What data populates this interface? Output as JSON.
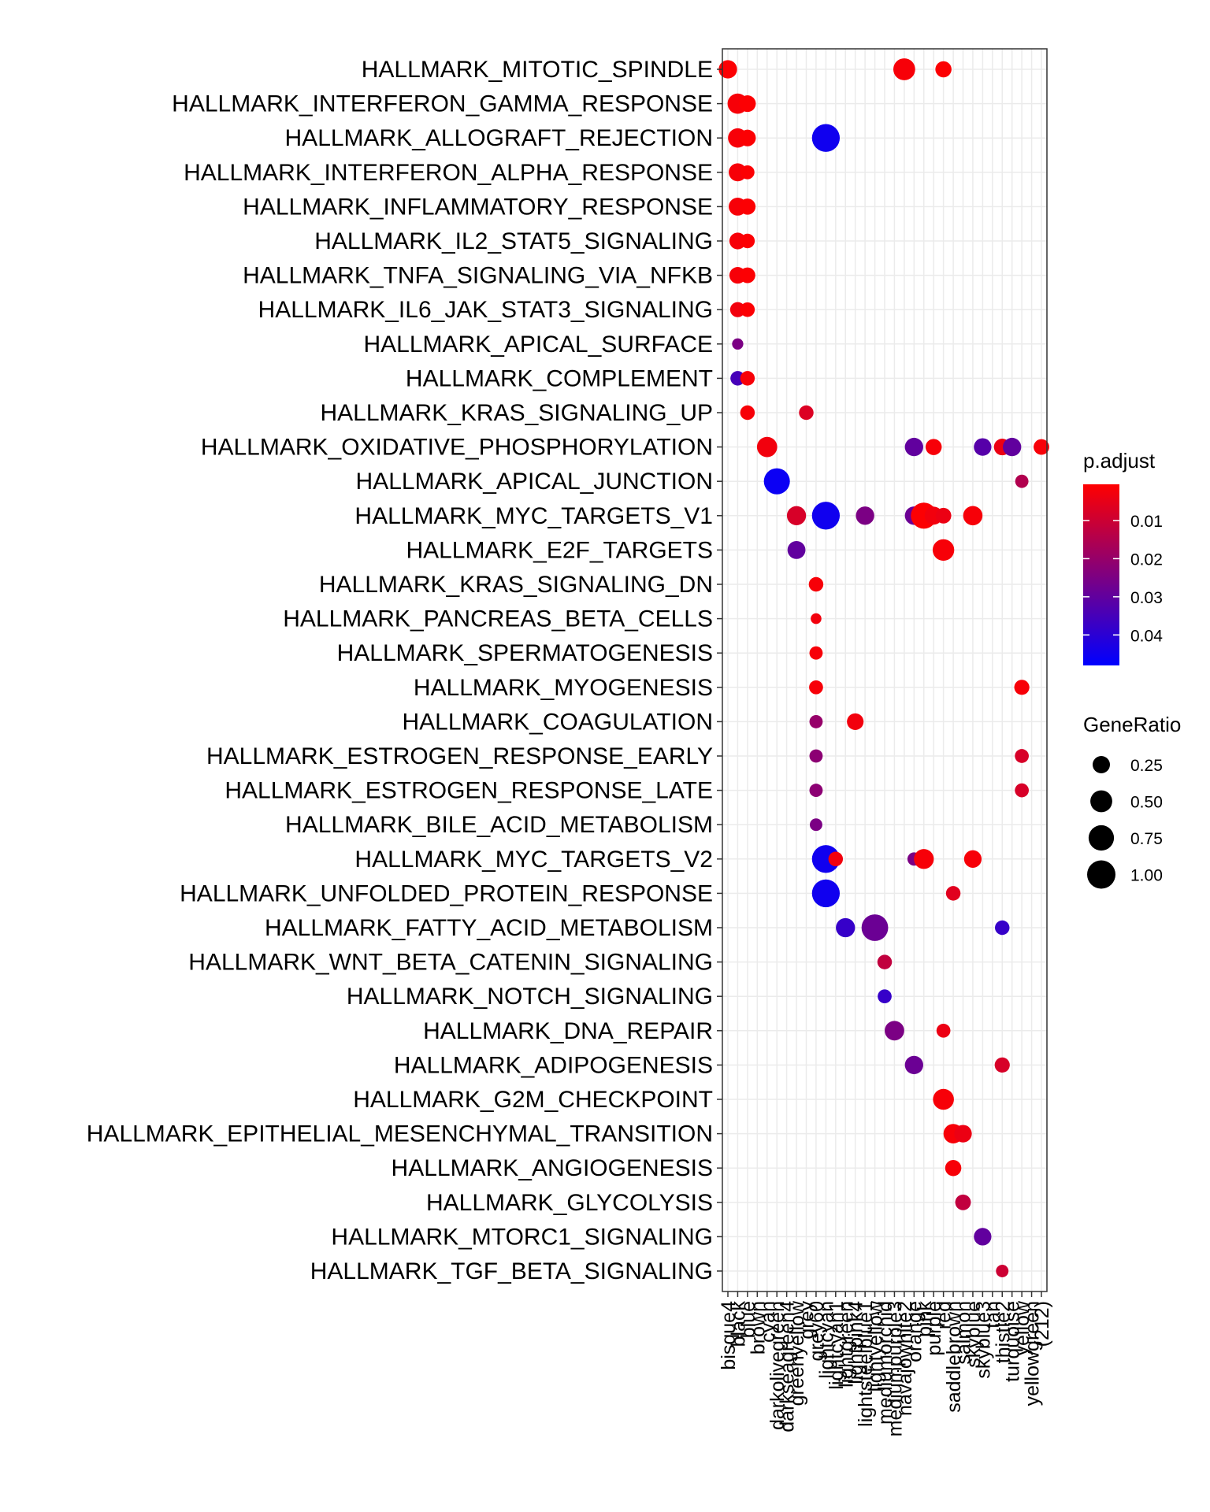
{
  "chart_data": {
    "type": "scatter",
    "title": "",
    "xlabel": "",
    "ylabel": "",
    "x_categories": [
      "bisque4",
      "black",
      "blue",
      "brown",
      "cyan",
      "darkolivegreen",
      "darkseagreen4",
      "greenyellow",
      "grey",
      "grey60",
      "lightcyan",
      "lightcyan1",
      "lightgreen",
      "lightpink4",
      "lightsteelblue1",
      "lightyellow",
      "mediumorchid",
      "mediumpurple3",
      "navajowhite2",
      "orange",
      "pink",
      "purple",
      "red",
      "saddlebrown",
      "salmon",
      "skyblue",
      "skyblue3",
      "tan",
      "thistle2",
      "turquoise",
      "yellow",
      "yellowgreen",
      "(212)"
    ],
    "y_categories": [
      "HALLMARK_MITOTIC_SPINDLE",
      "HALLMARK_INTERFERON_GAMMA_RESPONSE",
      "HALLMARK_ALLOGRAFT_REJECTION",
      "HALLMARK_INTERFERON_ALPHA_RESPONSE",
      "HALLMARK_INFLAMMATORY_RESPONSE",
      "HALLMARK_IL2_STAT5_SIGNALING",
      "HALLMARK_TNFA_SIGNALING_VIA_NFKB",
      "HALLMARK_IL6_JAK_STAT3_SIGNALING",
      "HALLMARK_APICAL_SURFACE",
      "HALLMARK_COMPLEMENT",
      "HALLMARK_KRAS_SIGNALING_UP",
      "HALLMARK_OXIDATIVE_PHOSPHORYLATION",
      "HALLMARK_APICAL_JUNCTION",
      "HALLMARK_MYC_TARGETS_V1",
      "HALLMARK_E2F_TARGETS",
      "HALLMARK_KRAS_SIGNALING_DN",
      "HALLMARK_PANCREAS_BETA_CELLS",
      "HALLMARK_SPERMATOGENESIS",
      "HALLMARK_MYOGENESIS",
      "HALLMARK_COAGULATION",
      "HALLMARK_ESTROGEN_RESPONSE_EARLY",
      "HALLMARK_ESTROGEN_RESPONSE_LATE",
      "HALLMARK_BILE_ACID_METABOLISM",
      "HALLMARK_MYC_TARGETS_V2",
      "HALLMARK_UNFOLDED_PROTEIN_RESPONSE",
      "HALLMARK_FATTY_ACID_METABOLISM",
      "HALLMARK_WNT_BETA_CATENIN_SIGNALING",
      "HALLMARK_NOTCH_SIGNALING",
      "HALLMARK_DNA_REPAIR",
      "HALLMARK_ADIPOGENESIS",
      "HALLMARK_G2M_CHECKPOINT",
      "HALLMARK_EPITHELIAL_MESENCHYMAL_TRANSITION",
      "HALLMARK_ANGIOGENESIS",
      "HALLMARK_GLYCOLYSIS",
      "HALLMARK_MTORC1_SIGNALING",
      "HALLMARK_TGF_BETA_SIGNALING"
    ],
    "points": [
      {
        "x": "bisque4",
        "y": "HALLMARK_MITOTIC_SPINDLE",
        "ratio": 0.3,
        "padj": 0.001
      },
      {
        "x": "navajowhite2",
        "y": "HALLMARK_MITOTIC_SPINDLE",
        "ratio": 0.5,
        "padj": 0.002
      },
      {
        "x": "red",
        "y": "HALLMARK_MITOTIC_SPINDLE",
        "ratio": 0.2,
        "padj": 0.001
      },
      {
        "x": "black",
        "y": "HALLMARK_INTERFERON_GAMMA_RESPONSE",
        "ratio": 0.4,
        "padj": 0.002
      },
      {
        "x": "blue",
        "y": "HALLMARK_INTERFERON_GAMMA_RESPONSE",
        "ratio": 0.22,
        "padj": 0.001
      },
      {
        "x": "black",
        "y": "HALLMARK_ALLOGRAFT_REJECTION",
        "ratio": 0.35,
        "padj": 0.002
      },
      {
        "x": "blue",
        "y": "HALLMARK_ALLOGRAFT_REJECTION",
        "ratio": 0.22,
        "padj": 0.001
      },
      {
        "x": "lightcyan",
        "y": "HALLMARK_ALLOGRAFT_REJECTION",
        "ratio": 0.95,
        "padj": 0.045
      },
      {
        "x": "black",
        "y": "HALLMARK_INTERFERON_ALPHA_RESPONSE",
        "ratio": 0.28,
        "padj": 0.002
      },
      {
        "x": "blue",
        "y": "HALLMARK_INTERFERON_ALPHA_RESPONSE",
        "ratio": 0.12,
        "padj": 0.001
      },
      {
        "x": "black",
        "y": "HALLMARK_INFLAMMATORY_RESPONSE",
        "ratio": 0.28,
        "padj": 0.002
      },
      {
        "x": "blue",
        "y": "HALLMARK_INFLAMMATORY_RESPONSE",
        "ratio": 0.2,
        "padj": 0.001
      },
      {
        "x": "black",
        "y": "HALLMARK_IL2_STAT5_SIGNALING",
        "ratio": 0.22,
        "padj": 0.002
      },
      {
        "x": "blue",
        "y": "HALLMARK_IL2_STAT5_SIGNALING",
        "ratio": 0.14,
        "padj": 0.001
      },
      {
        "x": "black",
        "y": "HALLMARK_TNFA_SIGNALING_VIA_NFKB",
        "ratio": 0.22,
        "padj": 0.002
      },
      {
        "x": "blue",
        "y": "HALLMARK_TNFA_SIGNALING_VIA_NFKB",
        "ratio": 0.18,
        "padj": 0.001
      },
      {
        "x": "black",
        "y": "HALLMARK_IL6_JAK_STAT3_SIGNALING",
        "ratio": 0.16,
        "padj": 0.003
      },
      {
        "x": "blue",
        "y": "HALLMARK_IL6_JAK_STAT3_SIGNALING",
        "ratio": 0.14,
        "padj": 0.001
      },
      {
        "x": "black",
        "y": "HALLMARK_APICAL_SURFACE",
        "ratio": 0.05,
        "padj": 0.025
      },
      {
        "x": "black",
        "y": "HALLMARK_COMPLEMENT",
        "ratio": 0.14,
        "padj": 0.035
      },
      {
        "x": "blue",
        "y": "HALLMARK_COMPLEMENT",
        "ratio": 0.14,
        "padj": 0.002
      },
      {
        "x": "blue",
        "y": "HALLMARK_KRAS_SIGNALING_UP",
        "ratio": 0.14,
        "padj": 0.002
      },
      {
        "x": "grey",
        "y": "HALLMARK_KRAS_SIGNALING_UP",
        "ratio": 0.14,
        "padj": 0.007
      },
      {
        "x": "cyan",
        "y": "HALLMARK_OXIDATIVE_PHOSPHORYLATION",
        "ratio": 0.4,
        "padj": 0.003
      },
      {
        "x": "orange",
        "y": "HALLMARK_OXIDATIVE_PHOSPHORYLATION",
        "ratio": 0.3,
        "padj": 0.03
      },
      {
        "x": "purple",
        "y": "HALLMARK_OXIDATIVE_PHOSPHORYLATION",
        "ratio": 0.2,
        "padj": 0.002
      },
      {
        "x": "skyblue3",
        "y": "HALLMARK_OXIDATIVE_PHOSPHORYLATION",
        "ratio": 0.26,
        "padj": 0.032
      },
      {
        "x": "thistle2",
        "y": "HALLMARK_OXIDATIVE_PHOSPHORYLATION",
        "ratio": 0.22,
        "padj": 0.004
      },
      {
        "x": "turquoise",
        "y": "HALLMARK_OXIDATIVE_PHOSPHORYLATION",
        "ratio": 0.3,
        "padj": 0.03
      },
      {
        "x": "(212)",
        "y": "HALLMARK_OXIDATIVE_PHOSPHORYLATION",
        "ratio": 0.18,
        "padj": 0.002
      },
      {
        "x": "darkolivegreen",
        "y": "HALLMARK_APICAL_JUNCTION",
        "ratio": 0.8,
        "padj": 0.046
      },
      {
        "x": "yellow",
        "y": "HALLMARK_APICAL_JUNCTION",
        "ratio": 0.1,
        "padj": 0.015
      },
      {
        "x": "greenyellow",
        "y": "HALLMARK_MYC_TARGETS_V1",
        "ratio": 0.34,
        "padj": 0.008
      },
      {
        "x": "lightcyan",
        "y": "HALLMARK_MYC_TARGETS_V1",
        "ratio": 0.95,
        "padj": 0.045
      },
      {
        "x": "lightsteelblue1",
        "y": "HALLMARK_MYC_TARGETS_V1",
        "ratio": 0.3,
        "padj": 0.025
      },
      {
        "x": "orange",
        "y": "HALLMARK_MYC_TARGETS_V1",
        "ratio": 0.3,
        "padj": 0.028
      },
      {
        "x": "pink",
        "y": "HALLMARK_MYC_TARGETS_V1",
        "ratio": 0.8,
        "padj": 0.001
      },
      {
        "x": "purple",
        "y": "HALLMARK_MYC_TARGETS_V1",
        "ratio": 0.28,
        "padj": 0.003
      },
      {
        "x": "red",
        "y": "HALLMARK_MYC_TARGETS_V1",
        "ratio": 0.18,
        "padj": 0.004
      },
      {
        "x": "skyblue",
        "y": "HALLMARK_MYC_TARGETS_V1",
        "ratio": 0.35,
        "padj": 0.002
      },
      {
        "x": "greenyellow",
        "y": "HALLMARK_E2F_TARGETS",
        "ratio": 0.28,
        "padj": 0.03
      },
      {
        "x": "red",
        "y": "HALLMARK_E2F_TARGETS",
        "ratio": 0.48,
        "padj": 0.002
      },
      {
        "x": "grey60",
        "y": "HALLMARK_KRAS_SIGNALING_DN",
        "ratio": 0.14,
        "padj": 0.002
      },
      {
        "x": "grey60",
        "y": "HALLMARK_PANCREAS_BETA_CELLS",
        "ratio": 0.04,
        "padj": 0.003
      },
      {
        "x": "grey60",
        "y": "HALLMARK_SPERMATOGENESIS",
        "ratio": 0.1,
        "padj": 0.002
      },
      {
        "x": "grey60",
        "y": "HALLMARK_MYOGENESIS",
        "ratio": 0.12,
        "padj": 0.002
      },
      {
        "x": "yellow",
        "y": "HALLMARK_MYOGENESIS",
        "ratio": 0.16,
        "padj": 0.002
      },
      {
        "x": "grey60",
        "y": "HALLMARK_COAGULATION",
        "ratio": 0.1,
        "padj": 0.02
      },
      {
        "x": "lightpink4",
        "y": "HALLMARK_COAGULATION",
        "ratio": 0.22,
        "padj": 0.003
      },
      {
        "x": "grey60",
        "y": "HALLMARK_ESTROGEN_RESPONSE_EARLY",
        "ratio": 0.1,
        "padj": 0.022
      },
      {
        "x": "yellow",
        "y": "HALLMARK_ESTROGEN_RESPONSE_EARLY",
        "ratio": 0.12,
        "padj": 0.008
      },
      {
        "x": "grey60",
        "y": "HALLMARK_ESTROGEN_RESPONSE_LATE",
        "ratio": 0.1,
        "padj": 0.022
      },
      {
        "x": "yellow",
        "y": "HALLMARK_ESTROGEN_RESPONSE_LATE",
        "ratio": 0.12,
        "padj": 0.008
      },
      {
        "x": "grey60",
        "y": "HALLMARK_BILE_ACID_METABOLISM",
        "ratio": 0.08,
        "padj": 0.025
      },
      {
        "x": "lightcyan",
        "y": "HALLMARK_MYC_TARGETS_V2",
        "ratio": 0.95,
        "padj": 0.045
      },
      {
        "x": "lightcyan1",
        "y": "HALLMARK_MYC_TARGETS_V2",
        "ratio": 0.14,
        "padj": 0.003
      },
      {
        "x": "orange",
        "y": "HALLMARK_MYC_TARGETS_V2",
        "ratio": 0.1,
        "padj": 0.025
      },
      {
        "x": "pink",
        "y": "HALLMARK_MYC_TARGETS_V2",
        "ratio": 0.38,
        "padj": 0.002
      },
      {
        "x": "skyblue",
        "y": "HALLMARK_MYC_TARGETS_V2",
        "ratio": 0.26,
        "padj": 0.002
      },
      {
        "x": "lightcyan",
        "y": "HALLMARK_UNFOLDED_PROTEIN_RESPONSE",
        "ratio": 0.95,
        "padj": 0.045
      },
      {
        "x": "saddlebrown",
        "y": "HALLMARK_UNFOLDED_PROTEIN_RESPONSE",
        "ratio": 0.14,
        "padj": 0.006
      },
      {
        "x": "lightgreen",
        "y": "HALLMARK_FATTY_ACID_METABOLISM",
        "ratio": 0.34,
        "padj": 0.038
      },
      {
        "x": "lightyellow",
        "y": "HALLMARK_FATTY_ACID_METABOLISM",
        "ratio": 0.85,
        "padj": 0.028
      },
      {
        "x": "thistle2",
        "y": "HALLMARK_FATTY_ACID_METABOLISM",
        "ratio": 0.14,
        "padj": 0.038
      },
      {
        "x": "mediumorchid",
        "y": "HALLMARK_WNT_BETA_CATENIN_SIGNALING",
        "ratio": 0.14,
        "padj": 0.012
      },
      {
        "x": "mediumorchid",
        "y": "HALLMARK_NOTCH_SIGNALING",
        "ratio": 0.12,
        "padj": 0.038
      },
      {
        "x": "mediumpurple3",
        "y": "HALLMARK_DNA_REPAIR",
        "ratio": 0.36,
        "padj": 0.025
      },
      {
        "x": "red",
        "y": "HALLMARK_DNA_REPAIR",
        "ratio": 0.12,
        "padj": 0.004
      },
      {
        "x": "orange",
        "y": "HALLMARK_ADIPOGENESIS",
        "ratio": 0.3,
        "padj": 0.028
      },
      {
        "x": "thistle2",
        "y": "HALLMARK_ADIPOGENESIS",
        "ratio": 0.16,
        "padj": 0.008
      },
      {
        "x": "red",
        "y": "HALLMARK_G2M_CHECKPOINT",
        "ratio": 0.44,
        "padj": 0.002
      },
      {
        "x": "saddlebrown",
        "y": "HALLMARK_EPITHELIAL_MESENCHYMAL_TRANSITION",
        "ratio": 0.36,
        "padj": 0.002
      },
      {
        "x": "salmon",
        "y": "HALLMARK_EPITHELIAL_MESENCHYMAL_TRANSITION",
        "ratio": 0.26,
        "padj": 0.004
      },
      {
        "x": "saddlebrown",
        "y": "HALLMARK_ANGIOGENESIS",
        "ratio": 0.2,
        "padj": 0.002
      },
      {
        "x": "salmon",
        "y": "HALLMARK_GLYCOLYSIS",
        "ratio": 0.18,
        "padj": 0.012
      },
      {
        "x": "skyblue3",
        "y": "HALLMARK_MTORC1_SIGNALING",
        "ratio": 0.26,
        "padj": 0.03
      },
      {
        "x": "thistle2",
        "y": "HALLMARK_TGF_BETA_SIGNALING",
        "ratio": 0.08,
        "padj": 0.01
      }
    ],
    "color_legend": {
      "title": "p.adjust",
      "ticks": [
        "0.01",
        "0.02",
        "0.03",
        "0.04"
      ],
      "tick_values": [
        0.01,
        0.02,
        0.03,
        0.04
      ],
      "range": [
        0.0005,
        0.048
      ],
      "low_color": "#ff0000",
      "high_color": "#0000ff"
    },
    "size_legend": {
      "title": "GeneRatio",
      "ticks": [
        "0.25",
        "0.50",
        "0.75",
        "1.00"
      ],
      "tick_values": [
        0.25,
        0.5,
        0.75,
        1.0
      ]
    },
    "grid": true,
    "legend_position": "right"
  }
}
